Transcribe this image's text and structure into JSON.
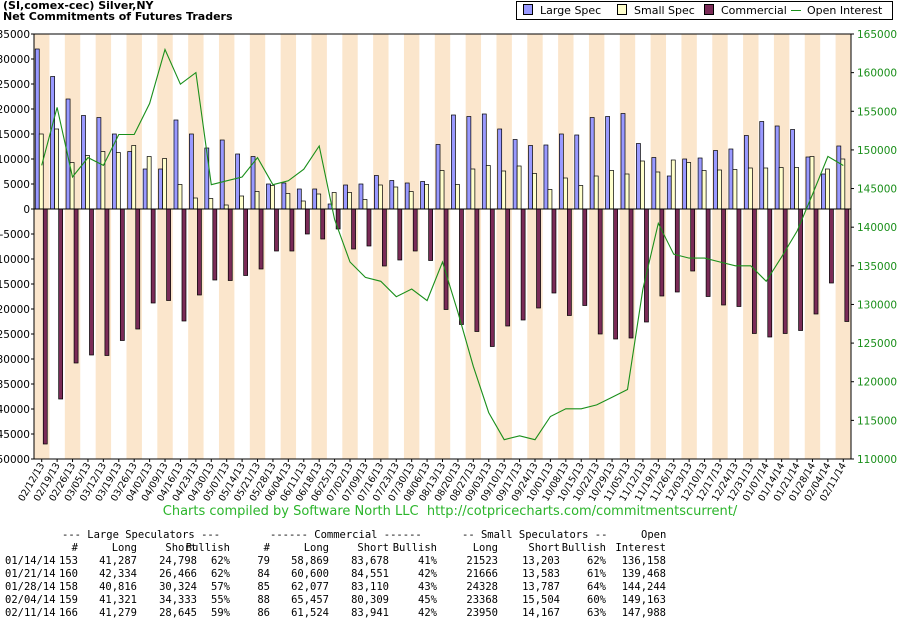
{
  "header": {
    "title": "(SI,comex-cec) Silver,NY",
    "subtitle": "Net Commitments of Futures Traders"
  },
  "legend": {
    "items": [
      {
        "label": "Large Spec",
        "color": "#9999ff",
        "kind": "bar"
      },
      {
        "label": "Small Spec",
        "color": "#ffffcc",
        "kind": "bar"
      },
      {
        "label": "Commercial",
        "color": "#7a2b57",
        "kind": "bar"
      },
      {
        "label": "Open Interest",
        "color": "#1a8f1a",
        "kind": "line"
      }
    ]
  },
  "credit": "Charts compiled by Software North LLC  http://cotpricecharts.com/commitmentscurrent/",
  "chart_data": {
    "type": "bar",
    "categories": [
      "02/12/13",
      "02/19/13",
      "02/26/13",
      "03/05/13",
      "03/12/13",
      "03/19/13",
      "03/26/13",
      "04/02/13",
      "04/09/13",
      "04/16/13",
      "04/23/13",
      "04/30/13",
      "05/07/13",
      "05/14/13",
      "05/21/13",
      "05/28/13",
      "06/04/13",
      "06/11/13",
      "06/18/13",
      "06/25/13",
      "07/02/13",
      "07/09/13",
      "07/16/13",
      "07/23/13",
      "07/30/13",
      "08/06/13",
      "08/13/13",
      "08/20/13",
      "08/27/13",
      "09/03/13",
      "09/10/13",
      "09/17/13",
      "09/24/13",
      "10/01/13",
      "10/08/13",
      "10/15/13",
      "10/22/13",
      "10/29/13",
      "11/05/13",
      "11/12/13",
      "11/19/13",
      "11/26/13",
      "12/03/13",
      "12/10/13",
      "12/17/13",
      "12/24/13",
      "12/31/13",
      "01/07/14",
      "01/14/14",
      "01/21/14",
      "01/28/14",
      "02/04/14",
      "02/11/14"
    ],
    "tick_labels": [
      "02/12/13",
      "02/19/13",
      "02/26/13",
      "03/05/13",
      "03/12/13",
      "03/19/13",
      "03/26/13",
      "04/02/13",
      "04/09/13",
      "04/16/13",
      "04/23/13",
      "04/30/13",
      "05/07/13",
      "05/14/13",
      "05/21/13",
      "05/28/13",
      "06/04/13",
      "06/11/13",
      "06/18/13",
      "06/25/13",
      "07/02/13",
      "07/09/13",
      "07/16/13",
      "07/23/13",
      "07/30/13",
      "08/06/13",
      "08/13/13",
      "08/20/13",
      "08/27/13",
      "09/03/13",
      "09/10/13",
      "09/17/13",
      "09/24/13",
      "10/01/13",
      "10/08/13",
      "10/15/13",
      "10/22/13",
      "10/29/13",
      "11/05/13",
      "11/12/13",
      "11/19/13",
      "11/26/13",
      "12/03/13",
      "12/10/13",
      "12/17/13",
      "12/24/13",
      "12/31/13",
      "01/07/14",
      "01/14/14",
      "01/21/14",
      "01/28/14",
      "02/04/14",
      "02/11/14"
    ],
    "series": [
      {
        "name": "Large Spec",
        "color": "#9999ff",
        "values": [
          32000,
          26500,
          22000,
          18700,
          18300,
          15000,
          11500,
          8000,
          8000,
          17800,
          15000,
          12200,
          13800,
          11000,
          10500,
          5000,
          5200,
          4000,
          4000,
          1000,
          4800,
          5000,
          6700,
          5700,
          5200,
          5500,
          12900,
          18800,
          18500,
          19000,
          16000,
          13900,
          12700,
          12800,
          15000,
          14800,
          18300,
          18500,
          19100,
          13100,
          10300,
          6600,
          10000,
          10200,
          11700,
          12000,
          14700,
          17500,
          16600,
          15900,
          10400,
          7000,
          12600
        ]
      },
      {
        "name": "Small Spec",
        "color": "#ffffcc",
        "values": [
          15000,
          16000,
          9300,
          10700,
          11500,
          11300,
          12700,
          10500,
          10100,
          4900,
          2200,
          2100,
          800,
          2600,
          3500,
          4700,
          3100,
          1600,
          3000,
          3300,
          3300,
          1900,
          4800,
          4400,
          3500,
          4900,
          7700,
          4900,
          8000,
          8700,
          7600,
          8600,
          7100,
          3900,
          6200,
          4700,
          6600,
          7700,
          7000,
          9600,
          7400,
          9800,
          9300,
          7700,
          7800,
          7900,
          8200,
          8200,
          8300,
          8300,
          10500,
          8000,
          10000
        ]
      },
      {
        "name": "Commercial",
        "color": "#7a2b57",
        "values": [
          -47000,
          -38000,
          -30800,
          -29200,
          -29300,
          -26300,
          -24000,
          -18800,
          -18300,
          -22400,
          -17200,
          -14200,
          -14300,
          -13300,
          -12000,
          -8400,
          -8400,
          -5000,
          -6000,
          -4000,
          -8000,
          -7400,
          -11400,
          -10200,
          -8400,
          -10300,
          -20100,
          -23100,
          -24500,
          -27500,
          -23400,
          -22200,
          -19800,
          -16800,
          -21300,
          -19300,
          -25000,
          -26000,
          -25800,
          -22600,
          -17400,
          -16600,
          -12400,
          -17500,
          -19200,
          -19500,
          -24900,
          -25600,
          -24900,
          -24300,
          -21000,
          -14800,
          -22500
        ]
      },
      {
        "name": "Open Interest",
        "color": "#1a8f1a",
        "axis": "right",
        "values": [
          148000,
          155500,
          146500,
          149000,
          148000,
          152000,
          152000,
          156000,
          163000,
          158500,
          160000,
          145500,
          146000,
          146500,
          149000,
          145500,
          146000,
          147500,
          150500,
          141000,
          135500,
          133500,
          133000,
          131000,
          132000,
          130500,
          135500,
          129000,
          122000,
          116000,
          112500,
          113000,
          112500,
          115500,
          116500,
          116500,
          117000,
          118000,
          119000,
          132000,
          140500,
          136500,
          136000,
          136000,
          135500,
          135000,
          135000,
          133000,
          136158,
          139468,
          144244,
          149163,
          147988
        ]
      }
    ],
    "ylim": [
      -50000,
      35000
    ],
    "y_ticks": [
      35000,
      30000,
      25000,
      20000,
      15000,
      10000,
      5000,
      0,
      -5000,
      -10000,
      -15000,
      -20000,
      -25000,
      -30000,
      -35000,
      -40000,
      -45000,
      -50000
    ],
    "y2lim": [
      110000,
      165000
    ],
    "y2_ticks": [
      165000,
      160000,
      155000,
      150000,
      145000,
      140000,
      135000,
      130000,
      125000,
      120000,
      115000,
      110000
    ],
    "grid": "alternating vertical bands",
    "band_color": "#fbe6cc",
    "legend_position": "top-right"
  },
  "table": {
    "group_headers": [
      "--- Large Speculators ---",
      "------ Commercial ------",
      "-- Small Speculators --",
      "Open"
    ],
    "columns": [
      "#",
      "Long",
      "Short",
      "Bullish",
      "#",
      "Long",
      "Short",
      "Bullish",
      "Long",
      "Short",
      "Bullish",
      "Interest"
    ],
    "rows": [
      {
        "date": "01/14/14",
        "cells": [
          "153",
          "41,287",
          "24,798",
          "62%",
          "79",
          "58,869",
          "83,678",
          "41%",
          "21523",
          "13,203",
          "62%",
          "136,158"
        ]
      },
      {
        "date": "01/21/14",
        "cells": [
          "160",
          "42,334",
          "26,466",
          "62%",
          "84",
          "60,600",
          "84,551",
          "42%",
          "21666",
          "13,583",
          "61%",
          "139,468"
        ]
      },
      {
        "date": "01/28/14",
        "cells": [
          "158",
          "40,816",
          "30,324",
          "57%",
          "85",
          "62,077",
          "83,110",
          "43%",
          "24328",
          "13,787",
          "64%",
          "144,244"
        ]
      },
      {
        "date": "02/04/14",
        "cells": [
          "159",
          "41,321",
          "34,333",
          "55%",
          "88",
          "65,457",
          "80,309",
          "45%",
          "23368",
          "15,504",
          "60%",
          "149,163"
        ]
      },
      {
        "date": "02/11/14",
        "cells": [
          "166",
          "41,279",
          "28,645",
          "59%",
          "86",
          "61,524",
          "83,941",
          "42%",
          "23950",
          "14,167",
          "63%",
          "147,988"
        ]
      }
    ]
  }
}
